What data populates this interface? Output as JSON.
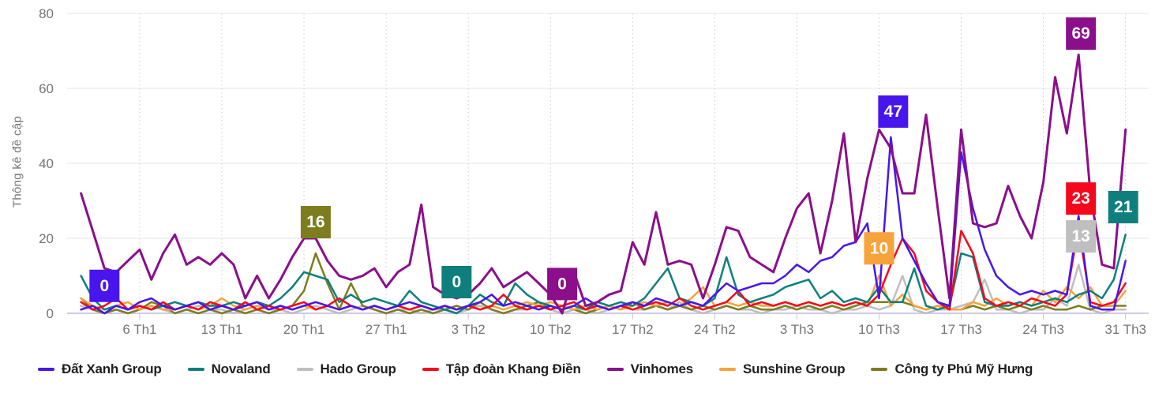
{
  "y_axis_title": "Thông kê đề cập",
  "chart_data": {
    "type": "line",
    "title": "",
    "xlabel": "",
    "ylabel": "Thông kê đề cập",
    "ylim": [
      0,
      80
    ],
    "y_ticks": [
      0,
      20,
      40,
      60,
      80
    ],
    "grid": true,
    "legend_position": "bottom",
    "days": 90,
    "x_ticks": [
      {
        "day": 6,
        "label": "6 Th1"
      },
      {
        "day": 13,
        "label": "13 Th1"
      },
      {
        "day": 20,
        "label": "20 Th1"
      },
      {
        "day": 27,
        "label": "27 Th1"
      },
      {
        "day": 34,
        "label": "3 Th2"
      },
      {
        "day": 41,
        "label": "10 Th2"
      },
      {
        "day": 48,
        "label": "17 Th2"
      },
      {
        "day": 55,
        "label": "24 Th2"
      },
      {
        "day": 62,
        "label": "3 Th3"
      },
      {
        "day": 69,
        "label": "10 Th3"
      },
      {
        "day": 76,
        "label": "17 Th3"
      },
      {
        "day": 83,
        "label": "24 Th3"
      },
      {
        "day": 90,
        "label": "31 Th3"
      }
    ],
    "series": [
      {
        "name": "Đất Xanh Group",
        "slug": "dat-xanh-group",
        "color": "#4816ec",
        "values": [
          1,
          2,
          0,
          2,
          1,
          3,
          4,
          2,
          1,
          2,
          3,
          1,
          2,
          1,
          2,
          3,
          1,
          2,
          1,
          2,
          3,
          2,
          1,
          2,
          1,
          2,
          1,
          2,
          3,
          2,
          1,
          2,
          1,
          2,
          3,
          5,
          2,
          3,
          2,
          1,
          2,
          1,
          2,
          4,
          2,
          1,
          2,
          3,
          2,
          4,
          3,
          2,
          3,
          2,
          5,
          8,
          6,
          7,
          8,
          8,
          10,
          13,
          11,
          14,
          15,
          18,
          19,
          24,
          4,
          47,
          20,
          14,
          8,
          3,
          2,
          43,
          28,
          17,
          10,
          7,
          5,
          6,
          5,
          6,
          5,
          26,
          2,
          1,
          1,
          14
        ]
      },
      {
        "name": "Novaland",
        "slug": "novaland",
        "color": "#0e7f7d",
        "values": [
          10,
          4,
          1,
          2,
          1,
          2,
          1,
          2,
          3,
          2,
          3,
          2,
          2,
          3,
          2,
          3,
          2,
          4,
          7,
          11,
          10,
          9,
          3,
          5,
          3,
          4,
          3,
          2,
          6,
          3,
          2,
          1,
          0,
          2,
          5,
          3,
          2,
          8,
          5,
          3,
          2,
          1,
          2,
          1,
          3,
          2,
          3,
          2,
          4,
          8,
          12,
          4,
          3,
          2,
          4,
          15,
          5,
          3,
          4,
          5,
          7,
          8,
          9,
          4,
          6,
          3,
          4,
          3,
          7,
          3,
          3,
          12,
          2,
          1,
          2,
          16,
          15,
          3,
          2,
          2,
          3,
          2,
          3,
          4,
          3,
          5,
          6,
          4,
          9,
          21
        ]
      },
      {
        "name": "Hado Group",
        "slug": "hado-group",
        "color": "#bfbfbf",
        "values": [
          2,
          1,
          0,
          1,
          0,
          1,
          2,
          1,
          0,
          1,
          2,
          1,
          1,
          0,
          1,
          2,
          1,
          1,
          0,
          1,
          2,
          1,
          0,
          1,
          2,
          1,
          0,
          1,
          1,
          0,
          1,
          1,
          0,
          1,
          2,
          1,
          0,
          1,
          1,
          2,
          1,
          0,
          1,
          1,
          0,
          1,
          2,
          1,
          1,
          2,
          1,
          3,
          1,
          0,
          1,
          2,
          1,
          1,
          0,
          1,
          1,
          2,
          1,
          1,
          0,
          1,
          1,
          2,
          1,
          2,
          10,
          1,
          0,
          1,
          1,
          2,
          3,
          9,
          1,
          1,
          0,
          1,
          1,
          4,
          2,
          13,
          1,
          0,
          1,
          1
        ]
      },
      {
        "name": "Tập đoàn Khang Điền",
        "slug": "tap-doan-khang-dien",
        "color": "#f5081c",
        "values": [
          3,
          1,
          2,
          4,
          1,
          2,
          1,
          3,
          1,
          2,
          1,
          3,
          2,
          1,
          3,
          1,
          2,
          1,
          2,
          3,
          1,
          2,
          4,
          2,
          1,
          2,
          1,
          2,
          1,
          2,
          1,
          2,
          1,
          2,
          1,
          2,
          5,
          2,
          1,
          2,
          1,
          2,
          3,
          1,
          2,
          1,
          2,
          1,
          2,
          3,
          2,
          4,
          2,
          1,
          2,
          3,
          6,
          2,
          3,
          2,
          3,
          2,
          3,
          2,
          3,
          2,
          3,
          2,
          5,
          13,
          20,
          16,
          6,
          3,
          1,
          22,
          16,
          4,
          2,
          3,
          2,
          4,
          3,
          2,
          5,
          23,
          3,
          2,
          3,
          8
        ]
      },
      {
        "name": "Vinhomes",
        "slug": "vinhomes",
        "color": "#8b0e8b",
        "values": [
          32,
          22,
          12,
          11,
          14,
          17,
          9,
          16,
          21,
          13,
          15,
          13,
          16,
          13,
          4,
          10,
          4,
          9,
          15,
          20,
          20,
          14,
          10,
          9,
          10,
          12,
          7,
          11,
          13,
          29,
          7,
          5,
          4,
          5,
          8,
          12,
          7,
          9,
          11,
          8,
          5,
          0,
          11,
          2,
          3,
          5,
          6,
          19,
          13,
          27,
          13,
          14,
          13,
          4,
          13,
          23,
          22,
          15,
          13,
          11,
          20,
          28,
          32,
          16,
          30,
          48,
          19,
          36,
          49,
          44,
          32,
          32,
          53,
          28,
          4,
          49,
          24,
          23,
          24,
          34,
          26,
          20,
          35,
          63,
          48,
          69,
          32,
          13,
          12,
          49
        ]
      },
      {
        "name": "Sunshine Group",
        "slug": "sunshine-group",
        "color": "#f7a33b",
        "values": [
          4,
          2,
          1,
          2,
          3,
          1,
          2,
          1,
          1,
          2,
          1,
          2,
          4,
          2,
          1,
          2,
          1,
          2,
          1,
          2,
          1,
          2,
          1,
          2,
          1,
          2,
          1,
          2,
          1,
          2,
          1,
          2,
          1,
          2,
          1,
          2,
          1,
          2,
          3,
          2,
          3,
          2,
          1,
          2,
          1,
          2,
          1,
          2,
          3,
          2,
          3,
          2,
          4,
          7,
          2,
          3,
          2,
          3,
          2,
          2,
          3,
          2,
          3,
          2,
          3,
          2,
          3,
          2,
          10,
          2,
          5,
          2,
          1,
          2,
          1,
          1,
          3,
          2,
          4,
          2,
          3,
          2,
          6,
          3,
          7,
          4,
          7,
          2,
          2,
          6
        ]
      },
      {
        "name": "Công ty Phú Mỹ Hưng",
        "slug": "cong-ty-phu-my-hung",
        "color": "#7d7d1f",
        "values": [
          4,
          1,
          0,
          1,
          0,
          1,
          3,
          2,
          0,
          1,
          0,
          1,
          0,
          1,
          0,
          1,
          0,
          1,
          2,
          6,
          16,
          8,
          1,
          8,
          2,
          1,
          0,
          1,
          0,
          1,
          0,
          1,
          2,
          1,
          3,
          1,
          0,
          1,
          2,
          3,
          1,
          2,
          1,
          0,
          1,
          2,
          1,
          3,
          1,
          2,
          1,
          2,
          1,
          2,
          1,
          2,
          1,
          2,
          1,
          1,
          2,
          1,
          2,
          1,
          2,
          1,
          2,
          3,
          3,
          3,
          3,
          2,
          1,
          2,
          1,
          1,
          2,
          1,
          2,
          1,
          2,
          1,
          2,
          1,
          1,
          2,
          1,
          2,
          2,
          2
        ]
      }
    ],
    "draw_order": [
      "Hado Group",
      "Công ty Phú Mỹ Hưng",
      "Sunshine Group",
      "Novaland",
      "Tập đoàn Khang Điền",
      "Đất Xanh Group",
      "Vinhomes"
    ],
    "annotations": [
      {
        "text": "0",
        "series": "Đất Xanh Group",
        "day": 3,
        "anchor_value": 3,
        "color": "#4816ec"
      },
      {
        "text": "16",
        "series": "Công ty Phú Mỹ Hưng",
        "day": 21,
        "anchor_value": 20,
        "color": "#7d7d1f"
      },
      {
        "text": "0",
        "series": "Novaland",
        "day": 33,
        "anchor_value": 4,
        "color": "#0e7f7d"
      },
      {
        "text": "0",
        "series": "Vinhomes",
        "day": 42,
        "anchor_value": 3.5,
        "color": "#8b0e8b"
      },
      {
        "text": "10",
        "series": "Sunshine Group",
        "day": 69,
        "anchor_value": 13,
        "color": "#f7a33b"
      },
      {
        "text": "47",
        "series": "Đất Xanh Group",
        "day": 70.2,
        "anchor_value": 49.5,
        "color": "#4816ec"
      },
      {
        "text": "13",
        "series": "Hado Group",
        "day": 86.2,
        "anchor_value": 16.2,
        "color": "#bfbfbf"
      },
      {
        "text": "23",
        "series": "Tập đoàn Khang Điền",
        "day": 86.2,
        "anchor_value": 26.3,
        "color": "#f5081c"
      },
      {
        "text": "69",
        "series": "Vinhomes",
        "day": 86.2,
        "anchor_value": 70.3,
        "color": "#8b0e8b"
      },
      {
        "text": "21",
        "series": "Novaland",
        "day": 89.8,
        "anchor_value": 24,
        "color": "#0e7f7d"
      }
    ],
    "style": {
      "axis_text_color": "#757575",
      "grid_color": "#e6e6e6",
      "baseline_color": "#cfc9ec",
      "dotted_grid_color": "#cccccc",
      "tick_color": "#c4c4c4",
      "legend_text_color": "#1f1f1f",
      "badge_text_color": "#ffffff"
    }
  }
}
